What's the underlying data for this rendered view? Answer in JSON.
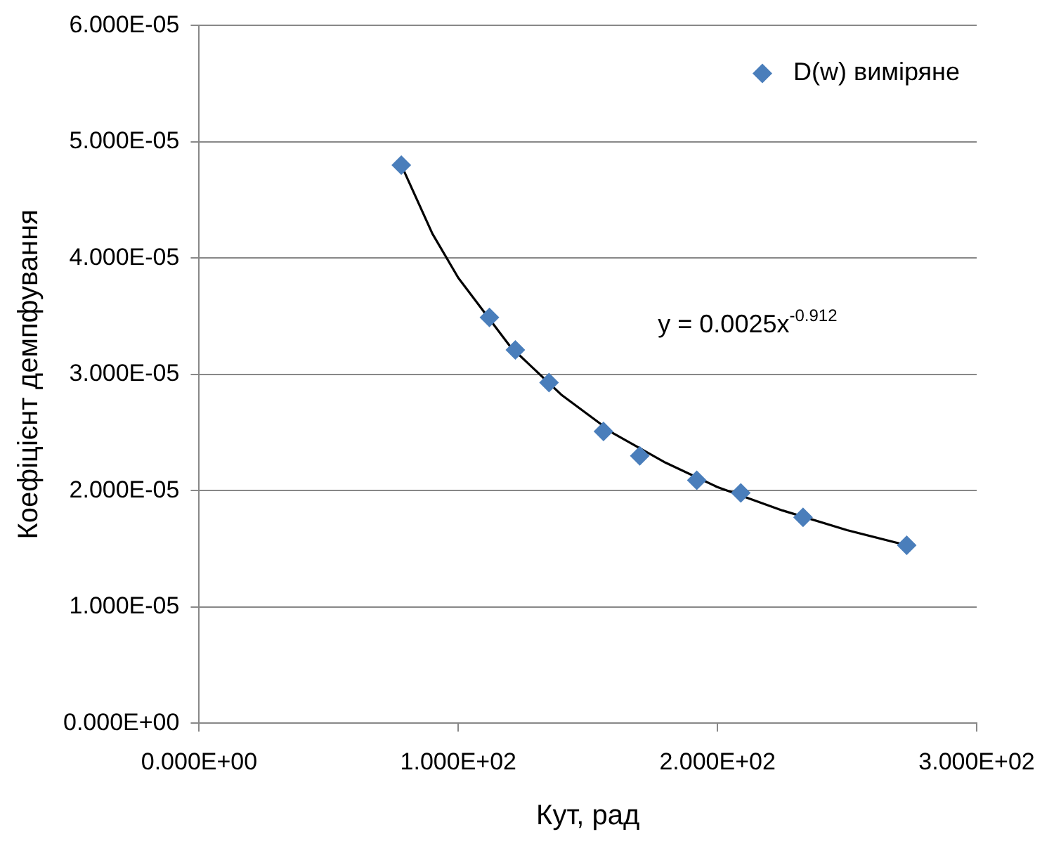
{
  "chart_data": {
    "type": "scatter",
    "xlabel": "Кут, рад",
    "ylabel": "Коефіцієнт демпфування",
    "series": [
      {
        "name": "D(w) виміряне",
        "type": "scatter",
        "color": "#4a7ebb",
        "marker": "diamond",
        "x": [
          78,
          112,
          122,
          135,
          156,
          170,
          192,
          209,
          233,
          273
        ],
        "values": [
          4.8e-05,
          3.49e-05,
          3.21e-05,
          2.93e-05,
          2.51e-05,
          2.3e-05,
          2.09e-05,
          1.98e-05,
          1.77e-05,
          1.53e-05
        ]
      },
      {
        "type": "line",
        "color": "#000000",
        "marker": "none",
        "line_style": "solid",
        "x": [
          78,
          90,
          100,
          120,
          140,
          160,
          180,
          200,
          225,
          250,
          273
        ],
        "values": [
          4.8e-05,
          4.21e-05,
          3.83e-05,
          3.24e-05,
          2.82e-05,
          2.49e-05,
          2.24e-05,
          2.03e-05,
          1.83e-05,
          1.66e-05,
          1.53e-05
        ]
      }
    ],
    "xlim": [
      0,
      300
    ],
    "xticks": [
      {
        "value": 0,
        "label": "0.000E+00"
      },
      {
        "value": 100,
        "label": "1.000E+02"
      },
      {
        "value": 200,
        "label": "2.000E+02"
      },
      {
        "value": 300,
        "label": "3.000E+02"
      }
    ],
    "ylim": [
      0,
      6e-05
    ],
    "yticks": [
      {
        "value": 0,
        "label": "0.000E+00"
      },
      {
        "value": 1e-05,
        "label": "1.000E-05"
      },
      {
        "value": 2e-05,
        "label": "2.000E-05"
      },
      {
        "value": 3e-05,
        "label": "3.000E-05"
      },
      {
        "value": 4e-05,
        "label": "4.000E-05"
      },
      {
        "value": 5e-05,
        "label": "5.000E-05"
      },
      {
        "value": 6e-05,
        "label": "6.000E-05"
      }
    ],
    "grid": "y",
    "legend": "top right",
    "annotations": [
      "y = 0.0025x$^{-0.912}$"
    ]
  }
}
